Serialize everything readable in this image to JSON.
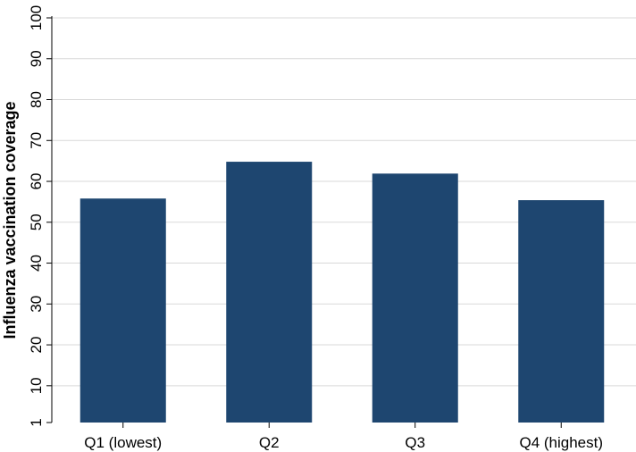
{
  "chart_data": {
    "type": "bar",
    "categories": [
      "Q1 (lowest)",
      "Q2",
      "Q3",
      "Q4 (highest)"
    ],
    "values": [
      55.8,
      64.8,
      61.9,
      55.4
    ],
    "ylabel": "Influenza vaccination coverage",
    "ylim": [
      1,
      100
    ],
    "yticks": [
      1,
      10,
      20,
      30,
      40,
      50,
      60,
      70,
      80,
      90,
      100
    ],
    "grid": true,
    "bar_color": "#1e4670",
    "grid_color": "#d9d9d9"
  }
}
